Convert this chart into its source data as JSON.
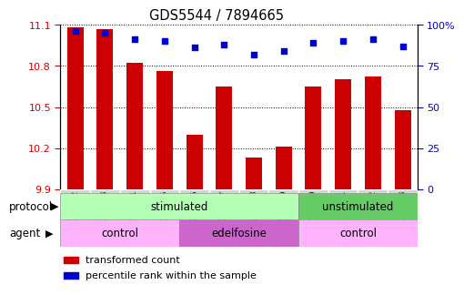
{
  "title": "GDS5544 / 7894665",
  "samples": [
    "GSM1084272",
    "GSM1084273",
    "GSM1084274",
    "GSM1084275",
    "GSM1084276",
    "GSM1084277",
    "GSM1084278",
    "GSM1084279",
    "GSM1084260",
    "GSM1084261",
    "GSM1084262",
    "GSM1084263"
  ],
  "bar_values": [
    11.08,
    11.07,
    10.82,
    10.76,
    10.3,
    10.65,
    10.13,
    10.21,
    10.65,
    10.7,
    10.72,
    10.48
  ],
  "dot_values": [
    96,
    95,
    91,
    90,
    86,
    88,
    82,
    84,
    89,
    90,
    91,
    87
  ],
  "ymin": 9.9,
  "ymax": 11.1,
  "ylim_right": [
    0,
    100
  ],
  "yticks_left": [
    9.9,
    10.2,
    10.5,
    10.8,
    11.1
  ],
  "yticks_right": [
    0,
    25,
    50,
    75,
    100
  ],
  "bar_color": "#cc0000",
  "dot_color": "#0000cc",
  "protocol_groups": [
    {
      "label": "stimulated",
      "start": 0,
      "end": 8,
      "color": "#b3ffb3"
    },
    {
      "label": "unstimulated",
      "start": 8,
      "end": 12,
      "color": "#66cc66"
    }
  ],
  "agent_groups": [
    {
      "label": "control",
      "start": 0,
      "end": 4,
      "color": "#ffb3ff"
    },
    {
      "label": "edelfosine",
      "start": 4,
      "end": 8,
      "color": "#cc66cc"
    },
    {
      "label": "control",
      "start": 8,
      "end": 12,
      "color": "#ffb3ff"
    }
  ],
  "legend_items": [
    {
      "label": "transformed count",
      "color": "#cc0000"
    },
    {
      "label": "percentile rank within the sample",
      "color": "#0000cc"
    }
  ]
}
